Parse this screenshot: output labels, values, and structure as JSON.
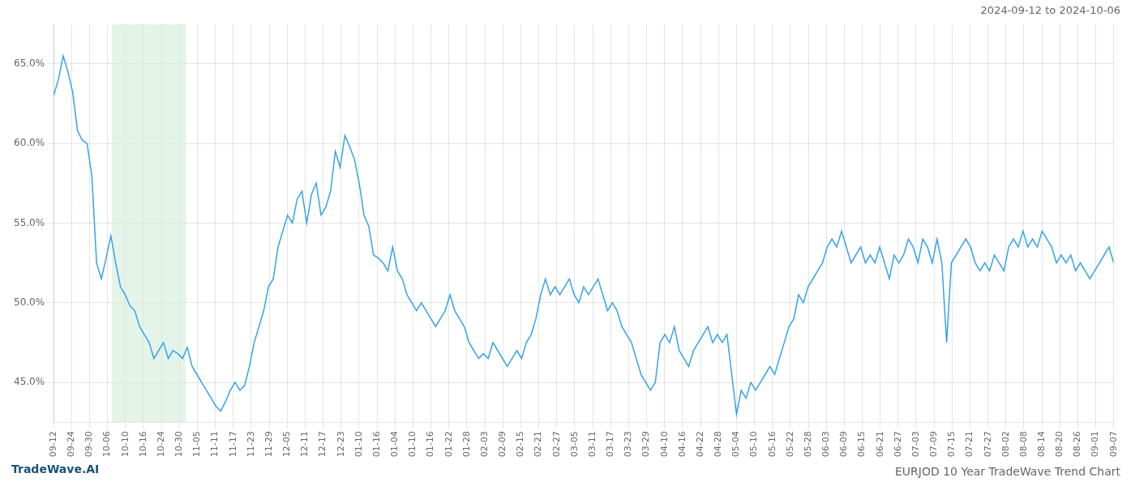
{
  "chart_data": {
    "type": "line",
    "title": "EURJOD 10 Year TradeWave Trend Chart",
    "subtitle": "2024-09-12 to 2024-10-06",
    "annotations": [
      "TradeWave.AI"
    ],
    "grid": true,
    "shaded_region": {
      "x": [
        12.21,
        27.75
      ],
      "color": "#d4edda"
    },
    "xlim": [
      0,
      222
    ],
    "xticks": [
      {
        "value": 0,
        "label": "09-12"
      },
      {
        "value": 3.7627,
        "label": "09-24"
      },
      {
        "value": 7.5254,
        "label": "09-30"
      },
      {
        "value": 11.2881,
        "label": "10-06"
      },
      {
        "value": 15.0508,
        "label": "10-10"
      },
      {
        "value": 18.8136,
        "label": "10-16"
      },
      {
        "value": 22.5763,
        "label": "10-24"
      },
      {
        "value": 26.339,
        "label": "10-30"
      },
      {
        "value": 30.1017,
        "label": "11-05"
      },
      {
        "value": 33.8644,
        "label": "11-11"
      },
      {
        "value": 37.6271,
        "label": "11-17"
      },
      {
        "value": 41.3898,
        "label": "11-23"
      },
      {
        "value": 45.1525,
        "label": "11-29"
      },
      {
        "value": 48.9153,
        "label": "12-05"
      },
      {
        "value": 52.678,
        "label": "12-11"
      },
      {
        "value": 56.4407,
        "label": "12-17"
      },
      {
        "value": 60.2034,
        "label": "12-23"
      },
      {
        "value": 63.9661,
        "label": "01-10"
      },
      {
        "value": 67.7288,
        "label": "01-16"
      },
      {
        "value": 71.4915,
        "label": "01-04"
      },
      {
        "value": 75.2542,
        "label": "01-10"
      },
      {
        "value": 79.0169,
        "label": "01-16"
      },
      {
        "value": 82.7797,
        "label": "01-22"
      },
      {
        "value": 86.5424,
        "label": "01-28"
      },
      {
        "value": 90.3051,
        "label": "02-03"
      },
      {
        "value": 94.0678,
        "label": "02-09"
      },
      {
        "value": 97.8305,
        "label": "02-15"
      },
      {
        "value": 101.5932,
        "label": "02-21"
      },
      {
        "value": 105.3559,
        "label": "02-27"
      },
      {
        "value": 109.1186,
        "label": "03-05"
      },
      {
        "value": 112.8814,
        "label": "03-11"
      },
      {
        "value": 116.6441,
        "label": "03-17"
      },
      {
        "value": 120.4068,
        "label": "03-23"
      },
      {
        "value": 124.1695,
        "label": "03-29"
      },
      {
        "value": 127.9322,
        "label": "04-10"
      },
      {
        "value": 131.6949,
        "label": "04-16"
      },
      {
        "value": 135.4576,
        "label": "04-22"
      },
      {
        "value": 139.2203,
        "label": "04-28"
      },
      {
        "value": 142.9831,
        "label": "05-04"
      },
      {
        "value": 146.7458,
        "label": "05-10"
      },
      {
        "value": 150.5085,
        "label": "05-16"
      },
      {
        "value": 154.2712,
        "label": "05-22"
      },
      {
        "value": 158.0339,
        "label": "05-28"
      },
      {
        "value": 161.7966,
        "label": "06-03"
      },
      {
        "value": 165.5593,
        "label": "06-09"
      },
      {
        "value": 169.322,
        "label": "06-15"
      },
      {
        "value": 173.0847,
        "label": "06-21"
      },
      {
        "value": 176.8475,
        "label": "06-27"
      },
      {
        "value": 180.6102,
        "label": "07-03"
      },
      {
        "value": 184.3729,
        "label": "07-09"
      },
      {
        "value": 188.1356,
        "label": "07-15"
      },
      {
        "value": 191.8983,
        "label": "07-21"
      },
      {
        "value": 195.661,
        "label": "07-27"
      },
      {
        "value": 199.4237,
        "label": "08-02"
      },
      {
        "value": 203.1864,
        "label": "08-08"
      },
      {
        "value": 206.9492,
        "label": "08-14"
      },
      {
        "value": 210.7119,
        "label": "08-20"
      },
      {
        "value": 214.4746,
        "label": "08-26"
      },
      {
        "value": 218.2373,
        "label": "09-01"
      },
      {
        "value": 222,
        "label": "09-07"
      }
    ],
    "ylim": [
      42.5,
      67.5
    ],
    "yticks": [
      {
        "value": 45.0,
        "label": "45.0%"
      },
      {
        "value": 50.0,
        "label": "50.0%"
      },
      {
        "value": 55.0,
        "label": "55.0%"
      },
      {
        "value": 60.0,
        "label": "60.0%"
      },
      {
        "value": 65.0,
        "label": "65.0%"
      }
    ],
    "values": [
      63.0,
      64.0,
      65.5,
      64.5,
      63.2,
      60.8,
      60.2,
      60.0,
      58.0,
      52.5,
      51.5,
      52.8,
      54.2,
      52.5,
      51.0,
      50.5,
      49.8,
      49.5,
      48.5,
      48.0,
      47.5,
      46.5,
      47.0,
      47.5,
      46.5,
      47.0,
      46.8,
      46.5,
      47.2,
      46.0,
      45.5,
      45.0,
      44.5,
      44.0,
      43.5,
      43.2,
      43.8,
      44.5,
      45.0,
      44.5,
      44.8,
      46.0,
      47.5,
      48.5,
      49.5,
      51.0,
      51.5,
      53.5,
      54.5,
      55.5,
      55.0,
      56.5,
      57.0,
      55.0,
      56.8,
      57.5,
      55.5,
      56.0,
      57.0,
      59.5,
      58.5,
      60.5,
      59.8,
      59.0,
      57.5,
      55.5,
      54.8,
      53.0,
      52.8,
      52.5,
      52.0,
      53.5,
      52.0,
      51.5,
      50.5,
      50.0,
      49.5,
      50.0,
      49.5,
      49.0,
      48.5,
      49.0,
      49.5,
      50.5,
      49.5,
      49.0,
      48.5,
      47.5,
      47.0,
      46.5,
      46.8,
      46.5,
      47.5,
      47.0,
      46.5,
      46.0,
      46.5,
      47.0,
      46.5,
      47.5,
      48.0,
      49.0,
      50.5,
      51.5,
      50.5,
      51.0,
      50.5,
      51.0,
      51.5,
      50.5,
      50.0,
      51.0,
      50.5,
      51.0,
      51.5,
      50.5,
      49.5,
      50.0,
      49.5,
      48.5,
      48.0,
      47.5,
      46.5,
      45.5,
      45.0,
      44.5,
      45.0,
      47.5,
      48.0,
      47.5,
      48.5,
      47.0,
      46.5,
      46.0,
      47.0,
      47.5,
      48.0,
      48.5,
      47.5,
      48.0,
      47.5,
      48.0,
      45.5,
      43.0,
      44.5,
      44.0,
      45.0,
      44.5,
      45.0,
      45.5,
      46.0,
      45.5,
      46.5,
      47.5,
      48.5,
      49.0,
      50.5,
      50.0,
      51.0,
      51.5,
      52.0,
      52.5,
      53.5,
      54.0,
      53.5,
      54.5,
      53.5,
      52.5,
      53.0,
      53.5,
      52.5,
      53.0,
      52.5,
      53.5,
      52.5,
      51.5,
      53.0,
      52.5,
      53.0,
      54.0,
      53.5,
      52.5,
      54.0,
      53.5,
      52.5,
      54.0,
      52.5,
      47.5,
      52.5,
      53.0,
      53.5,
      54.0,
      53.5,
      52.5,
      52.0,
      52.5,
      52.0,
      53.0,
      52.5,
      52.0,
      53.5,
      54.0,
      53.5,
      54.5,
      53.5,
      54.0,
      53.5,
      54.5,
      54.0,
      53.5,
      52.5,
      53.0,
      52.5,
      53.0,
      52.0,
      52.5,
      52.0,
      51.5,
      52.0,
      52.5,
      53.0,
      53.5,
      52.5
    ]
  }
}
